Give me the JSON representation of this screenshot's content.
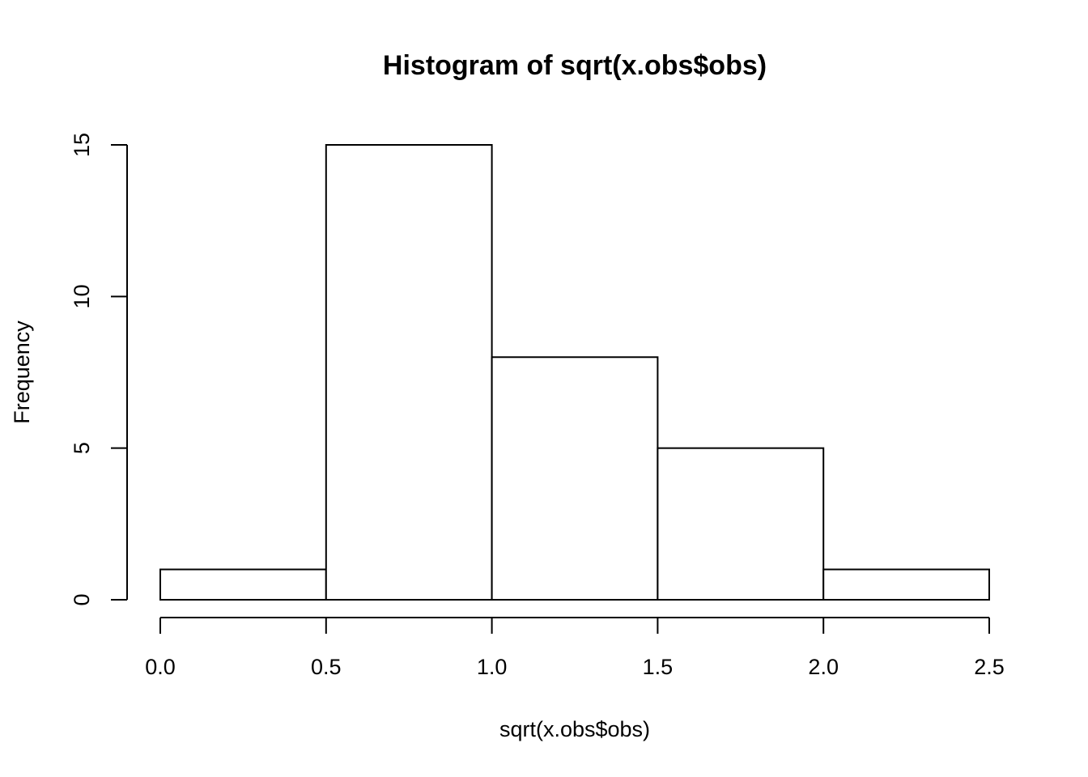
{
  "chart_data": {
    "type": "histogram",
    "title": "Histogram of sqrt(x.obs$obs)",
    "xlabel": "sqrt(x.obs$obs)",
    "ylabel": "Frequency",
    "bins": [
      {
        "start": 0.0,
        "end": 0.5,
        "count": 1
      },
      {
        "start": 0.5,
        "end": 1.0,
        "count": 15
      },
      {
        "start": 1.0,
        "end": 1.5,
        "count": 8
      },
      {
        "start": 1.5,
        "end": 2.0,
        "count": 5
      },
      {
        "start": 2.0,
        "end": 2.5,
        "count": 1
      }
    ],
    "xlim": [
      0,
      2.5
    ],
    "ylim": [
      0,
      15
    ],
    "x_ticks": [
      "0.0",
      "0.5",
      "1.0",
      "1.5",
      "2.0",
      "2.5"
    ],
    "y_ticks": [
      "0",
      "5",
      "10",
      "15"
    ],
    "grid": false,
    "bar_fill": "#ffffff",
    "bar_stroke": "#000000"
  }
}
